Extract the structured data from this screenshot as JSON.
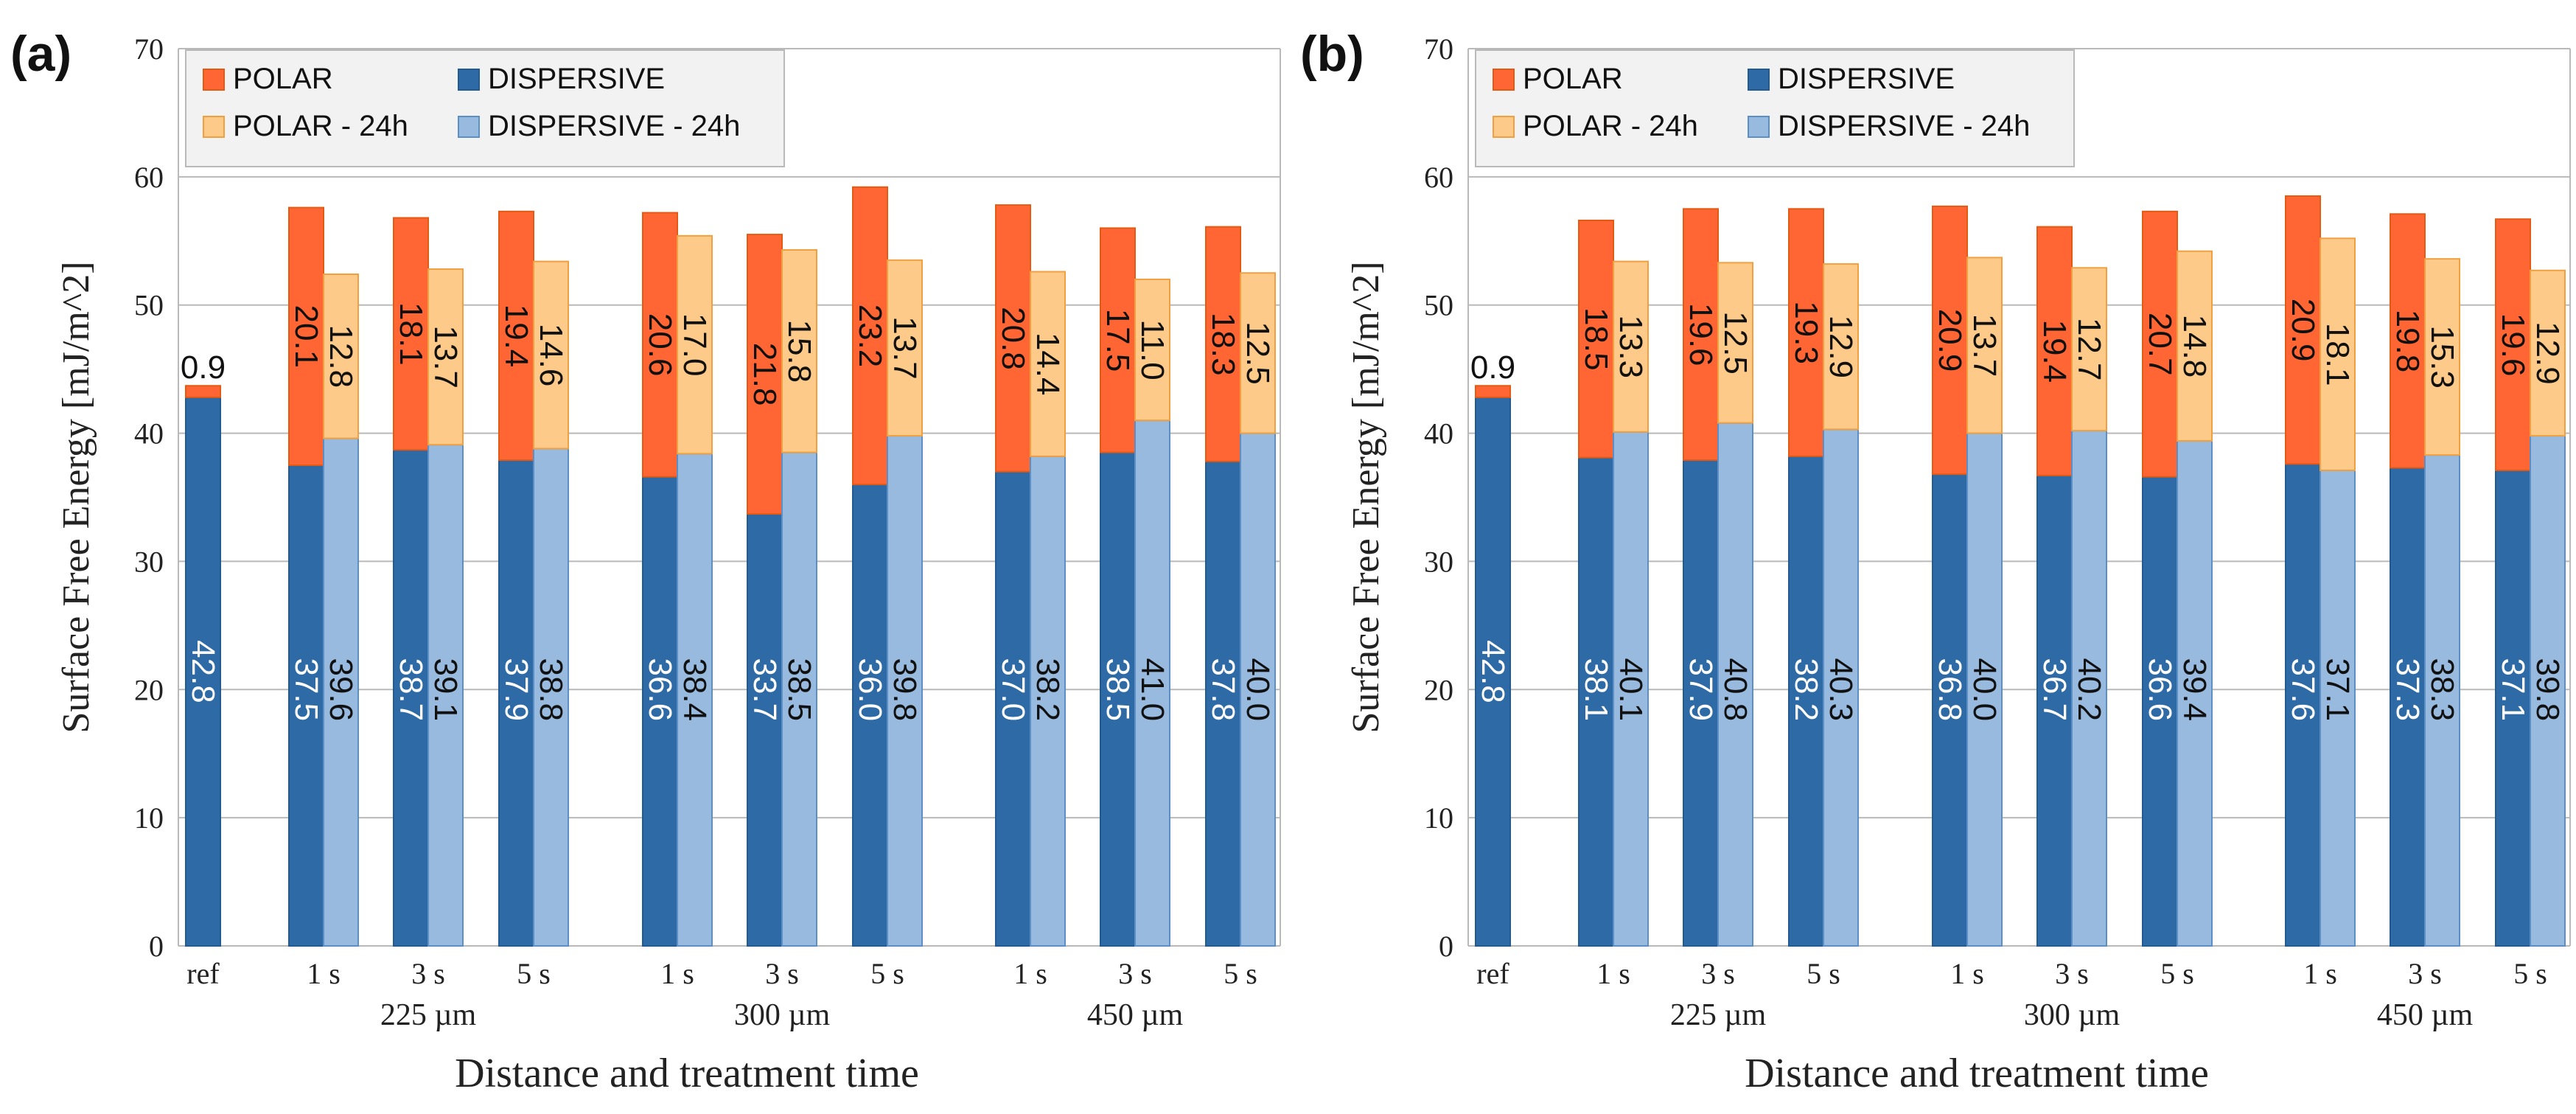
{
  "colors": {
    "polar": "#ff6633",
    "polar_stroke": "#e35a14",
    "dispersive": "#2e6aa5",
    "dispersive_stroke": "#235a8f",
    "polar_24h": "#fdca8a",
    "polar_24h_stroke": "#f0a040",
    "dispersive_24h": "#98badf",
    "dispersive_24h_stroke": "#5c8fc6",
    "grid": "#b9b9b9",
    "label_light": "#ffffff",
    "label_dark": "#111111"
  },
  "chart_data": [
    {
      "panel_label": "(a)",
      "type": "bar",
      "stacked": true,
      "ylabel": "Surface  Free Energy [mJ/m^2]",
      "xlabel": "Distance and treatment time",
      "ylim": [
        0,
        70
      ],
      "yticks": [
        "0",
        "10",
        "20",
        "30",
        "40",
        "50",
        "60",
        "70"
      ],
      "grid": true,
      "legend": {
        "position": "top-left",
        "items": [
          "POLAR",
          "DISPERSIVE",
          "POLAR - 24h",
          "DISPERSIVE - 24h"
        ]
      },
      "reference": {
        "label": "ref",
        "dispersive": 42.8,
        "polar": 0.9,
        "dispersive_text": "42.8",
        "polar_text": "0.9"
      },
      "groups": [
        {
          "label": "225 µm",
          "ticks": [
            "1 s",
            "3 s",
            "5 s"
          ],
          "dispersive": [
            37.5,
            38.7,
            37.9
          ],
          "polar": [
            20.1,
            18.1,
            19.4
          ],
          "dispersive_24h": [
            39.6,
            39.1,
            38.8
          ],
          "polar_24h": [
            12.8,
            13.7,
            14.6
          ],
          "dispersive_text": [
            "37.5",
            "38.7",
            "37.9"
          ],
          "polar_text": [
            "20.1",
            "18.1",
            "19.4"
          ],
          "dispersive_24h_text": [
            "39.6",
            "39.1",
            "38.8"
          ],
          "polar_24h_text": [
            "12.8",
            "13.7",
            "14.6"
          ]
        },
        {
          "label": "300 µm",
          "ticks": [
            "1 s",
            "3 s",
            "5 s"
          ],
          "dispersive": [
            36.6,
            33.7,
            36.0
          ],
          "polar": [
            20.6,
            21.8,
            23.2
          ],
          "dispersive_24h": [
            38.4,
            38.5,
            39.8
          ],
          "polar_24h": [
            17.0,
            15.8,
            13.7
          ],
          "dispersive_text": [
            "36.6",
            "33.7",
            "36.0"
          ],
          "polar_text": [
            "20.6",
            "21.8",
            "23.2"
          ],
          "dispersive_24h_text": [
            "38.4",
            "38.5",
            "39.8"
          ],
          "polar_24h_text": [
            "17.0",
            "15.8",
            "13.7"
          ]
        },
        {
          "label": "450 µm",
          "ticks": [
            "1 s",
            "3 s",
            "5 s"
          ],
          "dispersive": [
            37.0,
            38.5,
            37.8
          ],
          "polar": [
            20.8,
            17.5,
            18.3
          ],
          "dispersive_24h": [
            38.2,
            41.0,
            40.0
          ],
          "polar_24h": [
            14.4,
            11.0,
            12.5
          ],
          "dispersive_text": [
            "37.0",
            "38.5",
            "37.8"
          ],
          "polar_text": [
            "20.8",
            "17.5",
            "18.3"
          ],
          "dispersive_24h_text": [
            "38.2",
            "41.0",
            "40.0"
          ],
          "polar_24h_text": [
            "14.4",
            "11.0",
            "12.5"
          ]
        }
      ]
    },
    {
      "panel_label": "(b)",
      "type": "bar",
      "stacked": true,
      "ylabel": "Surface  Free Energy [mJ/m^2]",
      "xlabel": "Distance and treatment time",
      "ylim": [
        0,
        70
      ],
      "yticks": [
        "0",
        "10",
        "20",
        "30",
        "40",
        "50",
        "60",
        "70"
      ],
      "grid": true,
      "legend": {
        "position": "top-left",
        "items": [
          "POLAR",
          "DISPERSIVE",
          "POLAR - 24h",
          "DISPERSIVE - 24h"
        ]
      },
      "reference": {
        "label": "ref",
        "dispersive": 42.8,
        "polar": 0.9,
        "dispersive_text": "42.8",
        "polar_text": "0.9"
      },
      "groups": [
        {
          "label": "225 µm",
          "ticks": [
            "1 s",
            "3 s",
            "5 s"
          ],
          "dispersive": [
            38.1,
            37.9,
            38.2
          ],
          "polar": [
            18.5,
            19.6,
            19.3
          ],
          "dispersive_24h": [
            40.1,
            40.8,
            40.3
          ],
          "polar_24h": [
            13.3,
            12.5,
            12.9
          ],
          "dispersive_text": [
            "38.1",
            "37.9",
            "38.2"
          ],
          "polar_text": [
            "18.5",
            "19.6",
            "19.3"
          ],
          "dispersive_24h_text": [
            "40.1",
            "40.8",
            "40.3"
          ],
          "polar_24h_text": [
            "13.3",
            "12.5",
            "12.9"
          ]
        },
        {
          "label": "300 µm",
          "ticks": [
            "1 s",
            "3 s",
            "5 s"
          ],
          "dispersive": [
            36.8,
            36.7,
            36.6
          ],
          "polar": [
            20.9,
            19.4,
            20.7
          ],
          "dispersive_24h": [
            40.0,
            40.2,
            39.4
          ],
          "polar_24h": [
            13.7,
            12.7,
            14.8
          ],
          "dispersive_text": [
            "36.8",
            "36.7",
            "36.6"
          ],
          "polar_text": [
            "20.9",
            "19.4",
            "20.7"
          ],
          "dispersive_24h_text": [
            "40.0",
            "40.2",
            "39.4"
          ],
          "polar_24h_text": [
            "13.7",
            "12.7",
            "14.8"
          ]
        },
        {
          "label": "450 µm",
          "ticks": [
            "1 s",
            "3 s",
            "5 s"
          ],
          "dispersive": [
            37.6,
            37.3,
            37.1
          ],
          "polar": [
            20.9,
            19.8,
            19.6
          ],
          "dispersive_24h": [
            37.1,
            38.3,
            39.8
          ],
          "polar_24h": [
            18.1,
            15.3,
            12.9
          ],
          "dispersive_text": [
            "37.6",
            "37.3",
            "37.1"
          ],
          "polar_text": [
            "20.9",
            "19.8",
            "19.6"
          ],
          "dispersive_24h_text": [
            "37.1",
            "38.3",
            "39.8"
          ],
          "polar_24h_text": [
            "18.1",
            "15.3",
            "12.9"
          ]
        }
      ]
    }
  ]
}
